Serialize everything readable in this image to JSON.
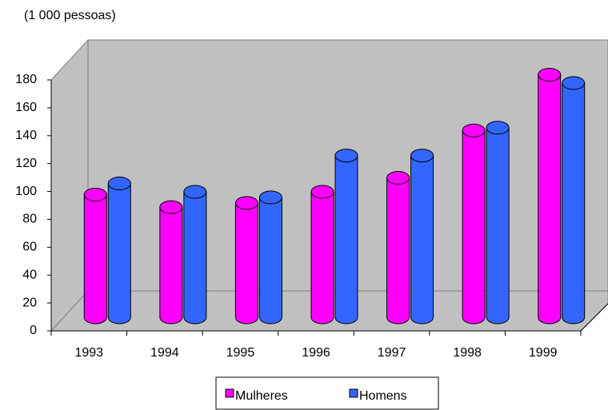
{
  "chart_data": {
    "type": "bar3d",
    "y_axis_label": "(1 000 pessoas)",
    "categories": [
      "1993",
      "1994",
      "1995",
      "1996",
      "1997",
      "1998",
      "1999"
    ],
    "series": [
      {
        "name": "Mulheres",
        "color": "#ff00ff",
        "values": [
          88,
          79,
          82,
          90,
          100,
          134,
          174
        ]
      },
      {
        "name": "Homens",
        "color": "#3366ff",
        "values": [
          96,
          90,
          86,
          116,
          116,
          136,
          168
        ]
      }
    ],
    "ylim": [
      0,
      180
    ],
    "yticks": [
      0,
      20,
      40,
      60,
      80,
      100,
      120,
      140,
      160,
      180
    ],
    "legend": "bottom"
  }
}
